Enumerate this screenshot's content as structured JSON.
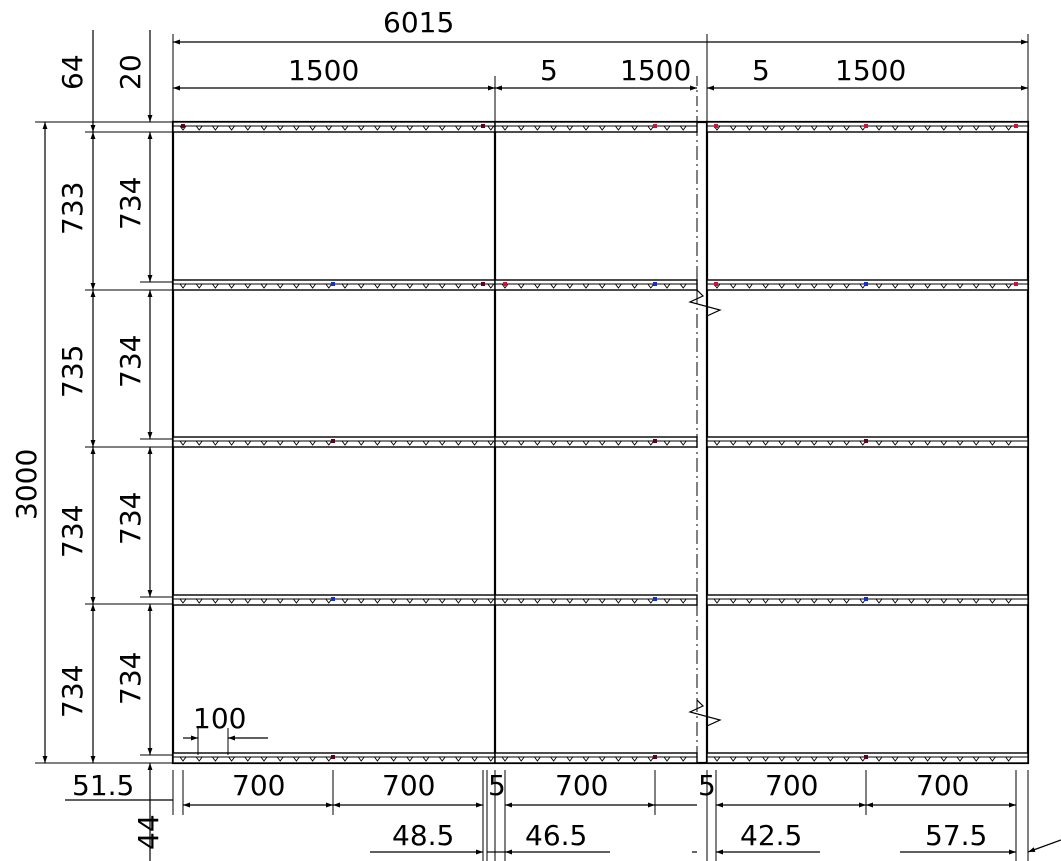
{
  "dimensions": {
    "overall_width": "6015",
    "panel_widths": [
      "1500",
      "1500",
      "1500"
    ],
    "gaps": [
      "5",
      "5"
    ],
    "overall_height": "3000",
    "top_offset_1": "64",
    "top_offset_2": "20",
    "left_heights": [
      "733",
      "735",
      "734",
      "734"
    ],
    "inner_heights": [
      "734",
      "734",
      "734",
      "734"
    ],
    "spacing_100": "100",
    "bottom_left_offset": "51.5",
    "bottom_spacings": [
      "700",
      "700",
      "700",
      "700",
      "700"
    ],
    "bottom_small_gaps": [
      "5",
      "5"
    ],
    "bottom_ends": [
      "48.5",
      "46.5",
      "42.5",
      "57.5"
    ],
    "left_bottom_offset": "44"
  },
  "colors": {
    "line": "#000000",
    "red_marker": "#d0103a",
    "blue_marker": "#1030d0",
    "dark_marker": "#600020"
  }
}
